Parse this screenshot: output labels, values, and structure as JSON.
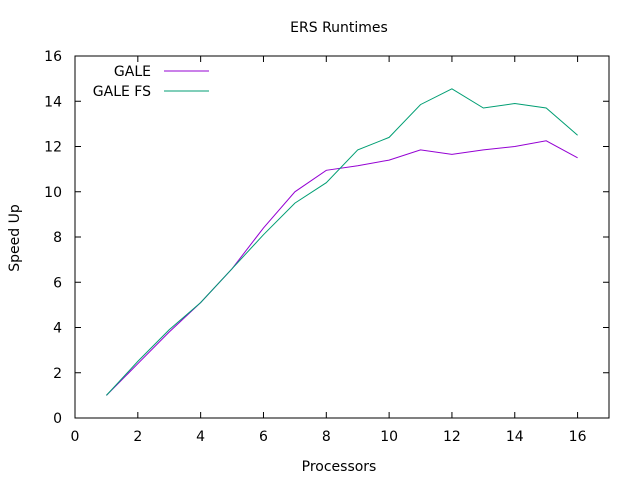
{
  "chart_data": {
    "type": "line",
    "title": "ERS Runtimes",
    "xlabel": "Processors",
    "ylabel": "Speed Up",
    "xlim": [
      0,
      17
    ],
    "ylim": [
      0,
      16
    ],
    "xticks": [
      0,
      2,
      4,
      6,
      8,
      10,
      12,
      14,
      16
    ],
    "yticks": [
      0,
      2,
      4,
      6,
      8,
      10,
      12,
      14,
      16
    ],
    "grid": false,
    "legend_position": "top-left",
    "series": [
      {
        "name": "GALE",
        "color": "#9400d3",
        "x": [
          1,
          2,
          3,
          4,
          5,
          6,
          7,
          8,
          9,
          10,
          11,
          12,
          13,
          14,
          15,
          16
        ],
        "y": [
          1.0,
          2.4,
          3.8,
          5.1,
          6.6,
          8.4,
          10.0,
          10.95,
          11.15,
          11.4,
          11.85,
          11.65,
          11.85,
          12.0,
          12.25,
          11.5
        ]
      },
      {
        "name": "GALE FS",
        "color": "#009e73",
        "x": [
          1,
          2,
          3,
          4,
          5,
          6,
          7,
          8,
          9,
          10,
          11,
          12,
          13,
          14,
          15,
          16
        ],
        "y": [
          1.0,
          2.5,
          3.9,
          5.1,
          6.6,
          8.1,
          9.5,
          10.4,
          11.85,
          12.4,
          13.85,
          14.55,
          13.7,
          13.9,
          13.7,
          12.5
        ]
      }
    ]
  }
}
